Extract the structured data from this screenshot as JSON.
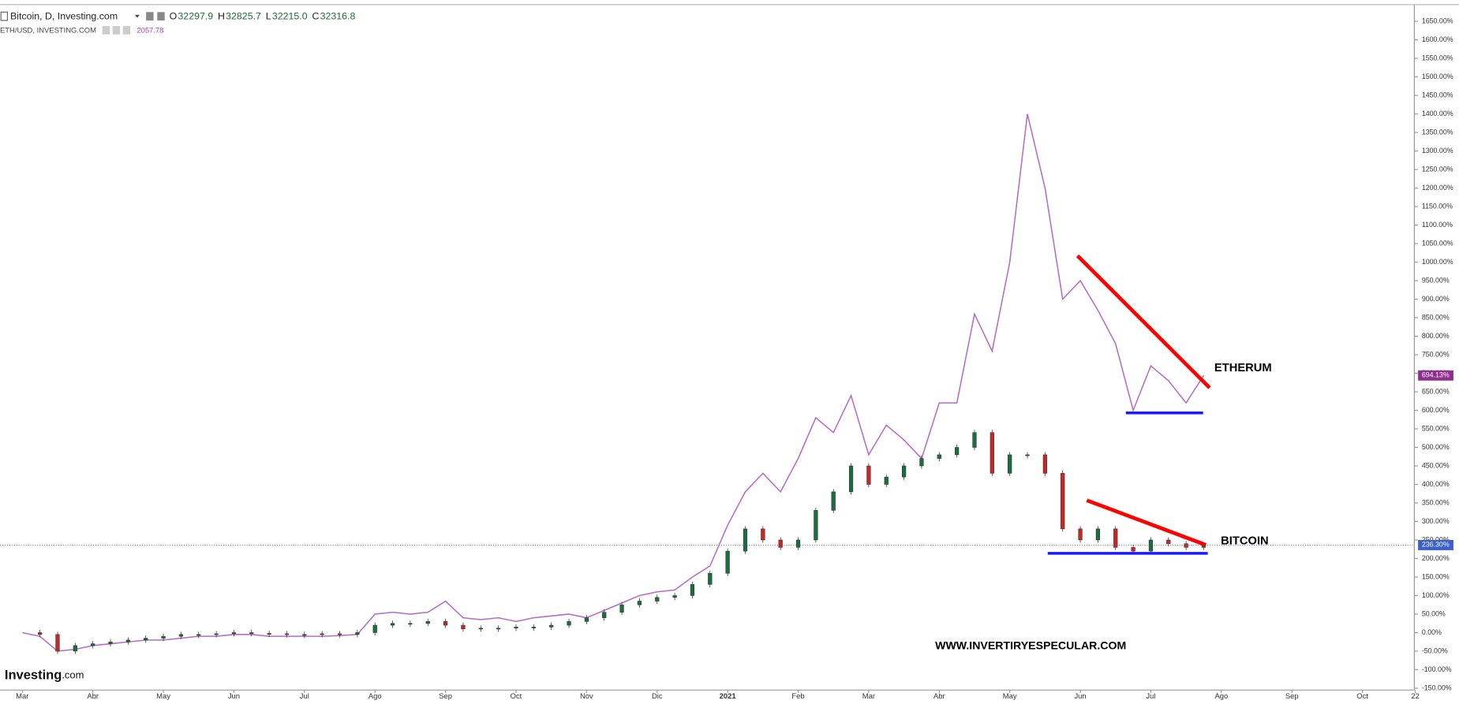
{
  "chart_data": {
    "type": "line",
    "header": {
      "ohlc": [
        {
          "label": "O",
          "value": "32297.9"
        },
        {
          "label": "H",
          "value": "32825.7"
        },
        {
          "label": "L",
          "value": "32215.0"
        },
        {
          "label": "C",
          "value": "32316.8"
        }
      ]
    },
    "annotations": {
      "eth": "ETHERUM",
      "btc": "BITCOIN",
      "website": "WWW.INVERTIRYESPECULAR.COM"
    },
    "logo": {
      "brand": "Investing",
      "suffix": ".com"
    },
    "categories": [
      "Mar",
      null,
      null,
      null,
      "Abr",
      null,
      null,
      null,
      "May",
      null,
      null,
      null,
      "Jun",
      null,
      null,
      null,
      "Jul",
      null,
      null,
      null,
      "Ago",
      null,
      null,
      null,
      "Sep",
      null,
      null,
      null,
      "Oct",
      null,
      null,
      null,
      "Nov",
      null,
      null,
      null,
      "Dic",
      null,
      null,
      null,
      "2021",
      null,
      null,
      null,
      "Feb",
      null,
      null,
      null,
      "Mar",
      null,
      null,
      null,
      "Abr",
      null,
      null,
      null,
      "May",
      null,
      null,
      null,
      "Jun",
      null,
      null,
      null,
      "Jul",
      null,
      null,
      null,
      "Ago",
      null,
      null,
      null,
      "Sep",
      null,
      null,
      null,
      "Oct",
      null,
      null,
      "22"
    ],
    "series": [
      {
        "name": "ETH/USD, INVESTING.COM",
        "color": "#b36cc6",
        "last_price": "2057.78",
        "value_label": "694.13%",
        "values": [
          0,
          -10,
          -50,
          -45,
          -35,
          -30,
          -25,
          -20,
          -20,
          -15,
          -10,
          -10,
          -5,
          -5,
          -10,
          -10,
          -10,
          -10,
          -8,
          -5,
          50,
          55,
          50,
          55,
          85,
          40,
          35,
          40,
          30,
          40,
          45,
          50,
          40,
          60,
          80,
          100,
          110,
          115,
          150,
          180,
          290,
          380,
          430,
          380,
          470,
          580,
          540,
          640,
          480,
          560,
          520,
          470,
          620,
          620,
          860,
          760,
          1000,
          1400,
          1200,
          900,
          950,
          870,
          780,
          600,
          720,
          680,
          620,
          694.13,
          null,
          null,
          null,
          null,
          null,
          null,
          null,
          null,
          null,
          null,
          null,
          null
        ]
      },
      {
        "name": "Bitcoin, D, Investing.com",
        "color": "#1b6e3f",
        "down_color": "#c62828",
        "value_label": "236.30%",
        "values": [
          0,
          -5,
          -50,
          -35,
          -30,
          -25,
          -20,
          -15,
          -10,
          -5,
          -5,
          -3,
          0,
          -2,
          -3,
          -5,
          -5,
          -3,
          -5,
          0,
          20,
          25,
          25,
          30,
          20,
          10,
          12,
          12,
          15,
          15,
          20,
          30,
          40,
          55,
          75,
          85,
          95,
          100,
          130,
          160,
          220,
          280,
          250,
          230,
          250,
          330,
          380,
          450,
          400,
          420,
          450,
          470,
          480,
          500,
          540,
          430,
          480,
          480,
          430,
          280,
          250,
          280,
          230,
          220,
          250,
          240,
          230,
          236.3,
          null,
          null,
          null,
          null,
          null,
          null,
          null,
          null,
          null,
          null,
          null,
          null
        ]
      }
    ],
    "ylim": [
      -155,
      1695
    ],
    "yticks": [
      {
        "value": -150,
        "label": "-150.00%"
      },
      {
        "value": -100,
        "label": "-100.00%"
      },
      {
        "value": -50,
        "label": "-50.00%"
      },
      {
        "value": 0,
        "label": "0.00%"
      },
      {
        "value": 50,
        "label": "50.00%"
      },
      {
        "value": 100,
        "label": "100.00%"
      },
      {
        "value": 150,
        "label": "150.00%"
      },
      {
        "value": 200,
        "label": "200.00%"
      },
      {
        "value": 250,
        "label": "250.00%"
      },
      {
        "value": 300,
        "label": "300.00%"
      },
      {
        "value": 350,
        "label": "350.00%"
      },
      {
        "value": 400,
        "label": "400.00%"
      },
      {
        "value": 450,
        "label": "450.00%"
      },
      {
        "value": 500,
        "label": "500.00%"
      },
      {
        "value": 550,
        "label": "550.00%"
      },
      {
        "value": 600,
        "label": "600.00%"
      },
      {
        "value": 650,
        "label": "650.00%"
      },
      {
        "value": 700,
        "label": "700.00%"
      },
      {
        "value": 750,
        "label": "750.00%"
      },
      {
        "value": 800,
        "label": "800.00%"
      },
      {
        "value": 850,
        "label": "850.00%"
      },
      {
        "value": 900,
        "label": "900.00%"
      },
      {
        "value": 950,
        "label": "950.00%"
      },
      {
        "value": 1000,
        "label": "1000.00%"
      },
      {
        "value": 1050,
        "label": "1050.00%"
      },
      {
        "value": 1100,
        "label": "1100.00%"
      },
      {
        "value": 1150,
        "label": "1150.00%"
      },
      {
        "value": 1200,
        "label": "1200.00%"
      },
      {
        "value": 1250,
        "label": "1250.00%"
      },
      {
        "value": 1300,
        "label": "1300.00%"
      },
      {
        "value": 1350,
        "label": "1350.00%"
      },
      {
        "value": 1400,
        "label": "1400.00%"
      },
      {
        "value": 1450,
        "label": "1450.00%"
      },
      {
        "value": 1500,
        "label": "1500.00%"
      },
      {
        "value": 1550,
        "label": "1550.00%"
      },
      {
        "value": 1600,
        "label": "1600.00%"
      },
      {
        "value": 1650,
        "label": "1650.00%"
      }
    ],
    "grid": false
  }
}
